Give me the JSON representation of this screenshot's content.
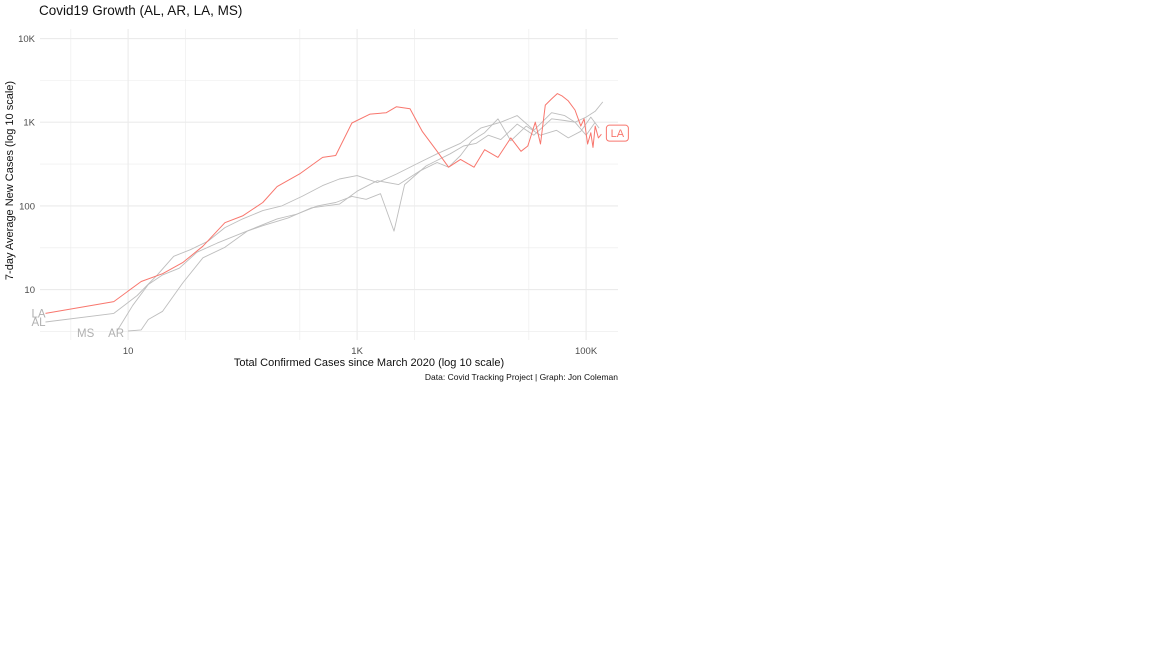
{
  "chart_data": {
    "type": "line",
    "title": "Covid19 Growth (AL, AR, LA, MS)",
    "xlabel": "Total Confirmed Cases since March 2020 (log 10 scale)",
    "ylabel": "7-day Average New Cases (log 10 scale)",
    "caption": "Data: Covid Tracking Project | Graph: Jon Coleman",
    "x_scale": "log10",
    "y_scale": "log10",
    "xlim": [
      1.7,
      190000
    ],
    "ylim": [
      2.5,
      13000
    ],
    "grid": true,
    "legend": "none",
    "x_ticks": [
      {
        "value": 10,
        "label": "10"
      },
      {
        "value": 1000,
        "label": "1K"
      },
      {
        "value": 100000,
        "label": "100K"
      }
    ],
    "y_ticks": [
      {
        "value": 10,
        "label": "10"
      },
      {
        "value": 100,
        "label": "100"
      },
      {
        "value": 1000,
        "label": "1K"
      },
      {
        "value": 10000,
        "label": "10K"
      }
    ],
    "colors": {
      "highlight": "#F8766D",
      "other": "#BEBEBE",
      "text": "#111111",
      "grid": "#EBEBEB"
    },
    "series": [
      {
        "name": "LA",
        "highlight": true,
        "start_label": "LA",
        "end_label": "LA",
        "x": [
          1.9,
          7.5,
          13,
          20,
          30,
          45,
          70,
          100,
          150,
          200,
          320,
          500,
          650,
          900,
          1300,
          1800,
          2200,
          2900,
          3700,
          5000,
          6300,
          8000,
          10500,
          13000,
          17000,
          22000,
          27000,
          31000,
          36000,
          40000,
          44000,
          50000,
          56000,
          62000,
          70000,
          80000,
          90000,
          96000,
          103000,
          110000,
          115000,
          120000,
          128000,
          136000
        ],
        "y": [
          5.2,
          7.2,
          12.5,
          15.5,
          21,
          33,
          63,
          76,
          110,
          170,
          245,
          380,
          400,
          980,
          1250,
          1300,
          1530,
          1450,
          780,
          450,
          290,
          360,
          290,
          470,
          380,
          650,
          450,
          520,
          1000,
          550,
          1600,
          1900,
          2200,
          2050,
          1800,
          1400,
          900,
          1100,
          550,
          750,
          500,
          900,
          650,
          720
        ]
      },
      {
        "name": "AL",
        "highlight": false,
        "start_label": "AL",
        "x": [
          1.9,
          7.5,
          12,
          18,
          25,
          35,
          50,
          70,
          100,
          150,
          220,
          330,
          500,
          700,
          1000,
          1500,
          2200,
          3500,
          5000,
          8000,
          12000,
          18000,
          25000,
          35000,
          50000,
          65000,
          80000,
          100000,
          120000,
          140000
        ],
        "y": [
          4.1,
          5.2,
          8.5,
          15,
          25,
          30,
          38,
          55,
          70,
          88,
          100,
          130,
          175,
          210,
          230,
          190,
          240,
          330,
          420,
          560,
          850,
          1000,
          1200,
          800,
          1300,
          1200,
          1000,
          1150,
          1350,
          1750
        ]
      },
      {
        "name": "AR",
        "highlight": false,
        "start_label": "AR",
        "x": [
          10,
          13,
          15,
          20,
          30,
          45,
          70,
          110,
          150,
          250,
          400,
          700,
          1000,
          1500,
          2300,
          3500,
          5000,
          6300,
          8000,
          10000,
          13000,
          17000,
          22000,
          30000,
          40000,
          55000,
          70000,
          90000,
          110000,
          130000
        ],
        "y": [
          3.2,
          3.3,
          4.4,
          5.5,
          12,
          24,
          32,
          50,
          58,
          72,
          95,
          105,
          150,
          200,
          180,
          260,
          330,
          290,
          400,
          600,
          750,
          1100,
          600,
          900,
          700,
          800,
          650,
          780,
          1150,
          850
        ]
      },
      {
        "name": "MS",
        "highlight": false,
        "start_label": "MS",
        "x": [
          8,
          11,
          15,
          20,
          28,
          40,
          60,
          90,
          130,
          200,
          300,
          450,
          650,
          900,
          1200,
          1600,
          2100,
          2600,
          3200,
          4000,
          5000,
          6500,
          8500,
          11000,
          14000,
          18000,
          25000,
          35000,
          50000,
          65000,
          80000,
          100000,
          120000
        ],
        "y": [
          3.2,
          6.5,
          11.5,
          15,
          18,
          28,
          36,
          45,
          55,
          70,
          80,
          100,
          110,
          130,
          120,
          140,
          50,
          180,
          230,
          300,
          350,
          420,
          520,
          560,
          700,
          620,
          950,
          700,
          1100,
          1050,
          1000,
          700,
          1000
        ]
      }
    ]
  }
}
